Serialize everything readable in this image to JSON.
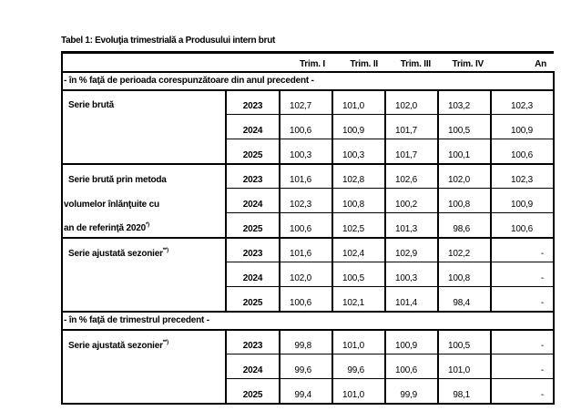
{
  "title": "Tabel 1: Evoluţia trimestrială a Produsului intern brut",
  "columns": [
    "Trim. I",
    "Trim. II",
    "Trim. III",
    "Trim. IV",
    "An"
  ],
  "sections": [
    {
      "label": "- în % faţă de perioada corespunzătoare din anul precedent -",
      "groups": [
        {
          "label": "Serie brută",
          "rows": [
            {
              "year": "2023",
              "values": [
                "102,7",
                "101,0",
                "102,0",
                "103,2",
                "102,3"
              ]
            },
            {
              "year": "2024",
              "values": [
                "100,6",
                "100,9",
                "101,7",
                "100,5",
                "100,9"
              ]
            },
            {
              "year": "2025",
              "values": [
                "100,3",
                "100,3",
                "101,7",
                "100,1",
                "100,6"
              ]
            }
          ]
        },
        {
          "label_lines": [
            "Serie brută prin metoda",
            "volumelor înlănţuite cu",
            "an de referinţă 2020"
          ],
          "label_note": "*)",
          "rows": [
            {
              "year": "2023",
              "values": [
                "101,6",
                "102,8",
                "102,6",
                "102,0",
                "102,3"
              ]
            },
            {
              "year": "2024",
              "values": [
                "102,3",
                "100,8",
                "100,2",
                "100,8",
                "100,9"
              ]
            },
            {
              "year": "2025",
              "values": [
                "100,6",
                "102,5",
                "101,3",
                "98,6",
                "100,6"
              ]
            }
          ]
        },
        {
          "label": "Serie ajustată sezonier",
          "label_note": "**)",
          "rows": [
            {
              "year": "2023",
              "values": [
                "101,6",
                "102,4",
                "102,9",
                "102,2",
                "-"
              ]
            },
            {
              "year": "2024",
              "values": [
                "102,0",
                "100,5",
                "100,3",
                "100,8",
                "-"
              ]
            },
            {
              "year": "2025",
              "values": [
                "100,6",
                "102,1",
                "101,4",
                "98,4",
                "-"
              ]
            }
          ]
        }
      ]
    },
    {
      "label": "- în % faţă de trimestrul precedent -",
      "groups": [
        {
          "label": "Serie ajustată sezonier",
          "label_note": "**)",
          "rows": [
            {
              "year": "2023",
              "values": [
                "99,8",
                "101,0",
                "100,9",
                "100,5",
                "-"
              ]
            },
            {
              "year": "2024",
              "values": [
                "99,6",
                "99,6",
                "100,6",
                "101,0",
                "-"
              ]
            },
            {
              "year": "2025",
              "values": [
                "99,4",
                "101,0",
                "99,9",
                "98,1",
                "-"
              ]
            }
          ]
        }
      ]
    }
  ]
}
